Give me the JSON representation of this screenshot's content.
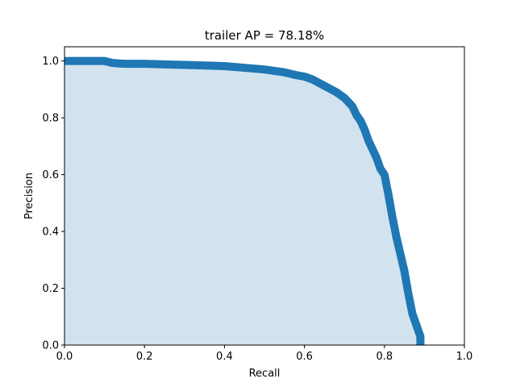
{
  "chart_data": {
    "type": "area",
    "title": "trailer AP = 78.18%",
    "xlabel": "Recall",
    "ylabel": "Precision",
    "xlim": [
      0,
      1
    ],
    "ylim": [
      0,
      1.05
    ],
    "grid": false,
    "x_ticks": [
      0.0,
      0.2,
      0.4,
      0.6,
      0.8,
      1.0
    ],
    "y_ticks": [
      0.0,
      0.2,
      0.4,
      0.6,
      0.8,
      1.0
    ],
    "x_tick_labels": [
      "0.0",
      "0.2",
      "0.4",
      "0.6",
      "0.8",
      "1.0"
    ],
    "y_tick_labels": [
      "0.0",
      "0.2",
      "0.4",
      "0.6",
      "0.8",
      "1.0"
    ],
    "colors": {
      "line": "#1f77b4",
      "fill": "#d2e3ef"
    },
    "series": [
      {
        "x": [
          0.0,
          0.05,
          0.1,
          0.12,
          0.15,
          0.2,
          0.25,
          0.3,
          0.35,
          0.4,
          0.45,
          0.5,
          0.55,
          0.58,
          0.6,
          0.62,
          0.64,
          0.66,
          0.68,
          0.7,
          0.71,
          0.72,
          0.73,
          0.74,
          0.75,
          0.76,
          0.77,
          0.78,
          0.79,
          0.8,
          0.81,
          0.82,
          0.83,
          0.84,
          0.85,
          0.86,
          0.87,
          0.88,
          0.89,
          0.89
        ],
        "y": [
          1.0,
          1.0,
          1.0,
          0.993,
          0.99,
          0.99,
          0.988,
          0.986,
          0.984,
          0.982,
          0.976,
          0.97,
          0.96,
          0.95,
          0.945,
          0.935,
          0.92,
          0.905,
          0.89,
          0.87,
          0.855,
          0.84,
          0.81,
          0.79,
          0.76,
          0.72,
          0.69,
          0.66,
          0.62,
          0.6,
          0.53,
          0.45,
          0.38,
          0.32,
          0.26,
          0.18,
          0.11,
          0.07,
          0.03,
          0.0
        ]
      }
    ]
  }
}
